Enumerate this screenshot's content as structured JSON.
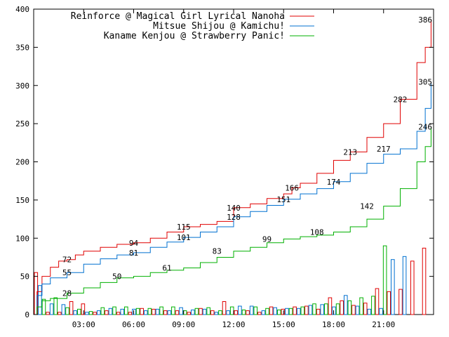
{
  "chart_data": {
    "type": "line",
    "title": "",
    "xlabel": "",
    "ylabel": "",
    "xlim": [
      0,
      24
    ],
    "ylim": [
      0,
      400
    ],
    "grid": false,
    "legend_position": "top-right",
    "x_ticks": [
      {
        "value": 3,
        "label": "03:00"
      },
      {
        "value": 6,
        "label": "06:00"
      },
      {
        "value": 9,
        "label": "09:00"
      },
      {
        "value": 12,
        "label": "12:00"
      },
      {
        "value": 15,
        "label": "15:00"
      },
      {
        "value": 18,
        "label": "18:00"
      },
      {
        "value": 21,
        "label": "21:00"
      }
    ],
    "y_ticks": [
      {
        "value": 0,
        "label": "0"
      },
      {
        "value": 50,
        "label": "50"
      },
      {
        "value": 100,
        "label": "100"
      },
      {
        "value": 150,
        "label": "150"
      },
      {
        "value": 200,
        "label": "200"
      },
      {
        "value": 250,
        "label": "250"
      },
      {
        "value": 300,
        "label": "300"
      },
      {
        "value": 350,
        "label": "350"
      },
      {
        "value": 400,
        "label": "400"
      }
    ],
    "series": [
      {
        "name": "Reinforce @ Magical Girl Lyrical Nanoha",
        "color": "#e00000",
        "cumulative": [
          [
            0,
            0
          ],
          [
            0.2,
            30
          ],
          [
            0.5,
            50
          ],
          [
            1,
            62
          ],
          [
            1.5,
            70
          ],
          [
            2,
            72
          ],
          [
            2.5,
            78
          ],
          [
            3,
            83
          ],
          [
            4,
            88
          ],
          [
            5,
            92
          ],
          [
            6,
            94
          ],
          [
            7,
            100
          ],
          [
            8,
            108
          ],
          [
            9,
            115
          ],
          [
            10,
            118
          ],
          [
            11,
            122
          ],
          [
            12,
            140
          ],
          [
            13,
            145
          ],
          [
            14,
            152
          ],
          [
            15,
            158
          ],
          [
            15.5,
            166
          ],
          [
            16,
            172
          ],
          [
            17,
            185
          ],
          [
            18,
            202
          ],
          [
            19,
            213
          ],
          [
            20,
            232
          ],
          [
            21,
            250
          ],
          [
            22,
            282
          ],
          [
            23,
            330
          ],
          [
            23.5,
            350
          ],
          [
            23.85,
            386
          ]
        ],
        "labels": [
          [
            2,
            72
          ],
          [
            6,
            94
          ],
          [
            9,
            115
          ],
          [
            12,
            140
          ],
          [
            15.5,
            166
          ],
          [
            19,
            213
          ],
          [
            22,
            282
          ],
          [
            23.5,
            386
          ]
        ],
        "bars": [
          55,
          3,
          3,
          17,
          14,
          3,
          5,
          3,
          3,
          8,
          7,
          5,
          5,
          3,
          8,
          5,
          17,
          5,
          5,
          3,
          10,
          7,
          10,
          11,
          7,
          22,
          18,
          12,
          15,
          34,
          30,
          33,
          70,
          87
        ]
      },
      {
        "name": "Mitsue Shijou @ Kamichu!",
        "color": "#0070d0",
        "cumulative": [
          [
            0,
            0
          ],
          [
            0.2,
            25
          ],
          [
            0.5,
            40
          ],
          [
            1,
            48
          ],
          [
            2,
            55
          ],
          [
            3,
            66
          ],
          [
            4,
            73
          ],
          [
            5,
            78
          ],
          [
            6,
            81
          ],
          [
            7,
            88
          ],
          [
            8,
            95
          ],
          [
            9,
            101
          ],
          [
            10,
            108
          ],
          [
            11,
            115
          ],
          [
            12,
            128
          ],
          [
            13,
            135
          ],
          [
            14,
            143
          ],
          [
            15,
            151
          ],
          [
            16,
            158
          ],
          [
            17,
            165
          ],
          [
            18,
            174
          ],
          [
            19,
            185
          ],
          [
            20,
            198
          ],
          [
            21,
            210
          ],
          [
            22,
            217
          ],
          [
            23,
            240
          ],
          [
            23.5,
            270
          ],
          [
            23.85,
            305
          ]
        ],
        "labels": [
          [
            2,
            55
          ],
          [
            6,
            81
          ],
          [
            9,
            101
          ],
          [
            12,
            128
          ],
          [
            15,
            151
          ],
          [
            18,
            174
          ],
          [
            21,
            217
          ],
          [
            23.5,
            305
          ]
        ],
        "bars": [
          38,
          14,
          13,
          5,
          3,
          5,
          8,
          7,
          7,
          5,
          7,
          5,
          9,
          6,
          7,
          3,
          5,
          11,
          11,
          5,
          9,
          8,
          8,
          12,
          13,
          10,
          25,
          11,
          7,
          8,
          72,
          76
        ]
      },
      {
        "name": "Kaname Kenjou @ Strawberry Panic!",
        "color": "#00b000",
        "cumulative": [
          [
            0,
            0
          ],
          [
            0.2,
            10
          ],
          [
            0.5,
            18
          ],
          [
            1,
            21
          ],
          [
            2,
            28
          ],
          [
            3,
            35
          ],
          [
            4,
            42
          ],
          [
            5,
            48
          ],
          [
            6,
            50
          ],
          [
            7,
            55
          ],
          [
            8,
            58
          ],
          [
            9,
            61
          ],
          [
            10,
            68
          ],
          [
            11,
            75
          ],
          [
            12,
            83
          ],
          [
            13,
            88
          ],
          [
            14,
            94
          ],
          [
            15,
            99
          ],
          [
            16,
            102
          ],
          [
            17,
            104
          ],
          [
            18,
            108
          ],
          [
            19,
            115
          ],
          [
            20,
            125
          ],
          [
            21,
            142
          ],
          [
            22,
            165
          ],
          [
            23,
            200
          ],
          [
            23.5,
            220
          ],
          [
            23.85,
            246
          ]
        ],
        "labels": [
          [
            2,
            28
          ],
          [
            5,
            50
          ],
          [
            8,
            61
          ],
          [
            11,
            83
          ],
          [
            14,
            99
          ],
          [
            17,
            108
          ],
          [
            20,
            142
          ],
          [
            23.5,
            246
          ]
        ],
        "bars": [
          20,
          22,
          9,
          7,
          4,
          9,
          10,
          10,
          8,
          8,
          10,
          10,
          5,
          8,
          9,
          5,
          10,
          6,
          10,
          8,
          6,
          8,
          10,
          14,
          14,
          14,
          18,
          22,
          24,
          90
        ]
      }
    ]
  }
}
